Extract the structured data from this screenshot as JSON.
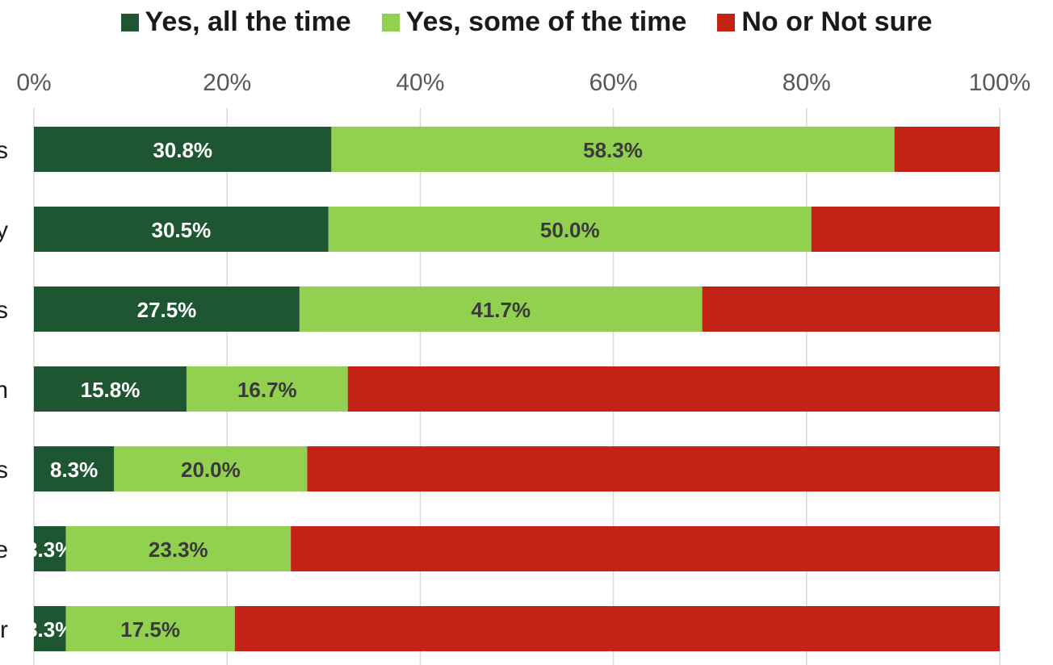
{
  "chart_data": {
    "type": "bar",
    "orientation": "horizontal",
    "stacked": true,
    "percent_scale": true,
    "title": "",
    "xlabel": "",
    "ylabel": "",
    "xlim": [
      0,
      100
    ],
    "x_ticks": [
      "0%",
      "20%",
      "40%",
      "60%",
      "80%",
      "100%"
    ],
    "x_axis_position": "top",
    "grid": true,
    "legend_position": "top",
    "categories": [
      "s",
      "y",
      "s",
      "n",
      "s",
      "e",
      "r"
    ],
    "series": [
      {
        "name": "Yes, all the time",
        "color": "#1e5631",
        "values": [
          30.8,
          30.5,
          27.5,
          15.8,
          8.3,
          3.3,
          3.3
        ],
        "labels": [
          "30.8%",
          "30.5%",
          "27.5%",
          "15.8%",
          "8.3%",
          "3.3%",
          "3.3%"
        ],
        "label_color": "#ffffff"
      },
      {
        "name": "Yes, some of the time",
        "color": "#92d050",
        "values": [
          58.3,
          50.0,
          41.7,
          16.7,
          20.0,
          23.3,
          17.5
        ],
        "labels": [
          "58.3%",
          "50.0%",
          "41.7%",
          "16.7%",
          "20.0%",
          "23.3%",
          "17.5%"
        ],
        "label_color": "#3a3a3a"
      },
      {
        "name": "No or Not sure",
        "color": "#c42217",
        "values": [
          10.9,
          19.5,
          30.8,
          67.5,
          71.7,
          73.4,
          79.2
        ],
        "labels": [
          "",
          "",
          "",
          "",
          "",
          "",
          ""
        ],
        "label_color": "#ffffff"
      }
    ]
  }
}
